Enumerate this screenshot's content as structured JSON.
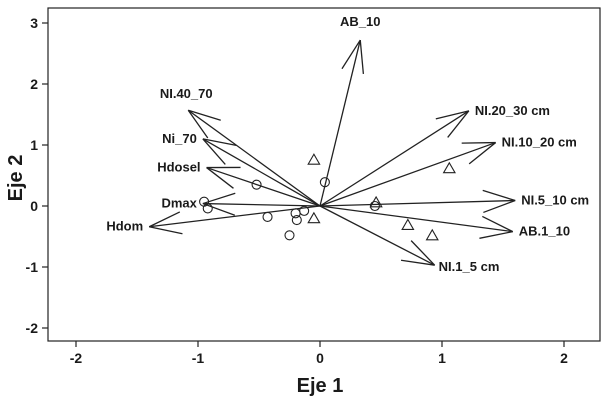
{
  "chart_data": {
    "type": "scatter",
    "subtype": "biplot",
    "title": "",
    "xlabel": "Eje 1",
    "ylabel": "Eje 2",
    "xlim": [
      -2.4,
      2.35
    ],
    "ylim": [
      -2.2,
      3.2
    ],
    "xticks": [
      -2,
      -1,
      0,
      1,
      2
    ],
    "yticks": [
      -2,
      -1,
      0,
      1,
      2,
      3
    ],
    "xtick_labels": [
      "-2",
      "-1",
      "0",
      "1",
      "2"
    ],
    "ytick_labels": [
      "-2",
      "-1",
      "0",
      "1",
      "2",
      "3"
    ],
    "grid": false,
    "legend": "none",
    "vectors": [
      {
        "label": "AB_10",
        "x": 0.33,
        "y": 2.72
      },
      {
        "label": "NI.40_70",
        "x": -1.08,
        "y": 1.57
      },
      {
        "label": "Ni_70",
        "x": -0.96,
        "y": 1.1
      },
      {
        "label": "Hdosel",
        "x": -0.93,
        "y": 0.63
      },
      {
        "label": "Dmax",
        "x": -0.96,
        "y": 0.04
      },
      {
        "label": "Hdom",
        "x": -1.4,
        "y": -0.34
      },
      {
        "label": "NI.20_30 cm",
        "x": 1.22,
        "y": 1.56
      },
      {
        "label": "NI.10_20 cm",
        "x": 1.44,
        "y": 1.04
      },
      {
        "label": "NI.5_10 cm",
        "x": 1.6,
        "y": 0.09
      },
      {
        "label": "AB.1_10",
        "x": 1.58,
        "y": -0.42
      },
      {
        "label": "NI.1_5 cm",
        "x": 0.94,
        "y": -0.97
      }
    ],
    "series": [
      {
        "marker": "circle",
        "points": [
          {
            "x": -0.95,
            "y": 0.07
          },
          {
            "x": -0.92,
            "y": -0.04
          },
          {
            "x": -0.52,
            "y": 0.35
          },
          {
            "x": -0.43,
            "y": -0.18
          },
          {
            "x": -0.2,
            "y": -0.12
          },
          {
            "x": -0.19,
            "y": -0.23
          },
          {
            "x": -0.13,
            "y": -0.08
          },
          {
            "x": -0.25,
            "y": -0.48
          },
          {
            "x": 0.04,
            "y": 0.39
          },
          {
            "x": 0.45,
            "y": 0.0
          }
        ]
      },
      {
        "marker": "triangle",
        "points": [
          {
            "x": -0.05,
            "y": 0.75
          },
          {
            "x": -0.05,
            "y": -0.21
          },
          {
            "x": 0.46,
            "y": 0.05
          },
          {
            "x": 0.72,
            "y": -0.32
          },
          {
            "x": 0.92,
            "y": -0.49
          },
          {
            "x": 1.06,
            "y": 0.61
          }
        ]
      }
    ]
  }
}
